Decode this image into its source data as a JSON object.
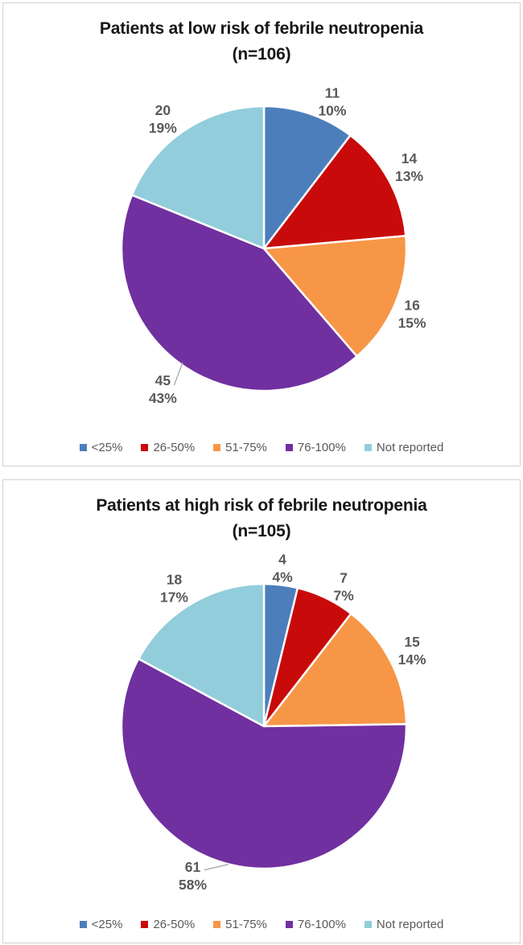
{
  "colors": {
    "slice_palette": [
      "#4B7EBB",
      "#C90A0A",
      "#F79646",
      "#7030A0",
      "#92CDDC"
    ],
    "data_label_text": "#595959",
    "legend_text": "#595959",
    "title_text": "#171717",
    "panel_border": "#d2d2d2",
    "leader_line": "#A6A6A6",
    "slice_separator": "#ffffff"
  },
  "chart_data": [
    {
      "type": "pie",
      "title_line1": "Patients at low risk of febrile neutropenia",
      "title_line2": "(n=106)",
      "title": "Patients at low risk of febrile neutropenia (n=106)",
      "n_total": 106,
      "categories": [
        "<25%",
        "26-50%",
        "51-75%",
        "76-100%",
        "Not reported"
      ],
      "values": [
        11,
        14,
        16,
        45,
        20
      ],
      "percent_labels": [
        "10%",
        "13%",
        "15%",
        "43%",
        "19%"
      ],
      "colors": [
        "#4B7EBB",
        "#C90A0A",
        "#F79646",
        "#7030A0",
        "#92CDDC"
      ],
      "start_angle_deg": 0,
      "clockwise": true,
      "legend": [
        "<25%",
        "26-50%",
        "51-75%",
        "76-100%",
        "Not reported"
      ],
      "legend_position": "bottom",
      "label_pos_r": [
        [
          0.48,
          -1.03
        ],
        [
          1.02,
          -0.57
        ],
        [
          1.04,
          0.46
        ],
        [
          -0.71,
          0.99
        ],
        [
          -0.71,
          -0.91
        ]
      ],
      "leaders": [
        {
          "slice": 3,
          "points_r": [
            [
              -0.63,
              0.96
            ],
            [
              -0.57,
              0.8
            ]
          ]
        }
      ]
    },
    {
      "type": "pie",
      "title_line1": "Patients at high risk of febrile neutropenia",
      "title_line2": "(n=105)",
      "title": "Patients at high risk of febrile neutropenia (n=105)",
      "n_total": 105,
      "categories": [
        "<25%",
        "26-50%",
        "51-75%",
        "76-100%",
        "Not reported"
      ],
      "values": [
        4,
        7,
        15,
        61,
        18
      ],
      "percent_labels": [
        "4%",
        "7%",
        "14%",
        "58%",
        "17%"
      ],
      "colors": [
        "#4B7EBB",
        "#C90A0A",
        "#F79646",
        "#7030A0",
        "#92CDDC"
      ],
      "start_angle_deg": 0,
      "clockwise": true,
      "legend": [
        "<25%",
        "26-50%",
        "51-75%",
        "76-100%",
        "Not reported"
      ],
      "legend_position": "bottom",
      "label_pos_r": [
        [
          0.13,
          -1.11
        ],
        [
          0.56,
          -0.98
        ],
        [
          1.04,
          -0.53
        ],
        [
          -0.5,
          1.05
        ],
        [
          -0.63,
          -0.97
        ]
      ],
      "leaders": [
        {
          "slice": 3,
          "points_r": [
            [
              -0.42,
              1.01
            ],
            [
              -0.25,
              0.97
            ]
          ]
        }
      ]
    }
  ]
}
